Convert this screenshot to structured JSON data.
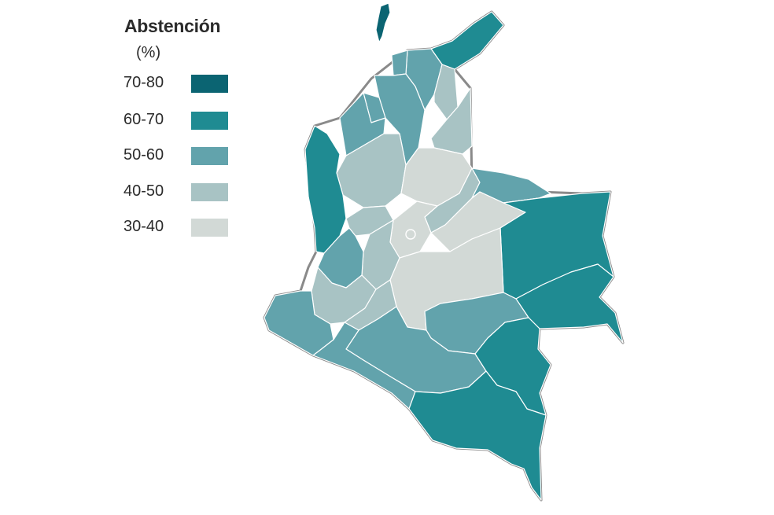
{
  "legend": {
    "title": "Abstención",
    "subtitle": "(%)",
    "items": [
      {
        "label": "70-80",
        "color": "#0b6472"
      },
      {
        "label": "60-70",
        "color": "#1f8b92"
      },
      {
        "label": "50-60",
        "color": "#62a3ac"
      },
      {
        "label": "40-50",
        "color": "#a8c3c4"
      },
      {
        "label": "30-40",
        "color": "#d2d9d6"
      }
    ]
  },
  "colors": {
    "outline": "#8a8a8a",
    "border": "#ffffff"
  }
}
